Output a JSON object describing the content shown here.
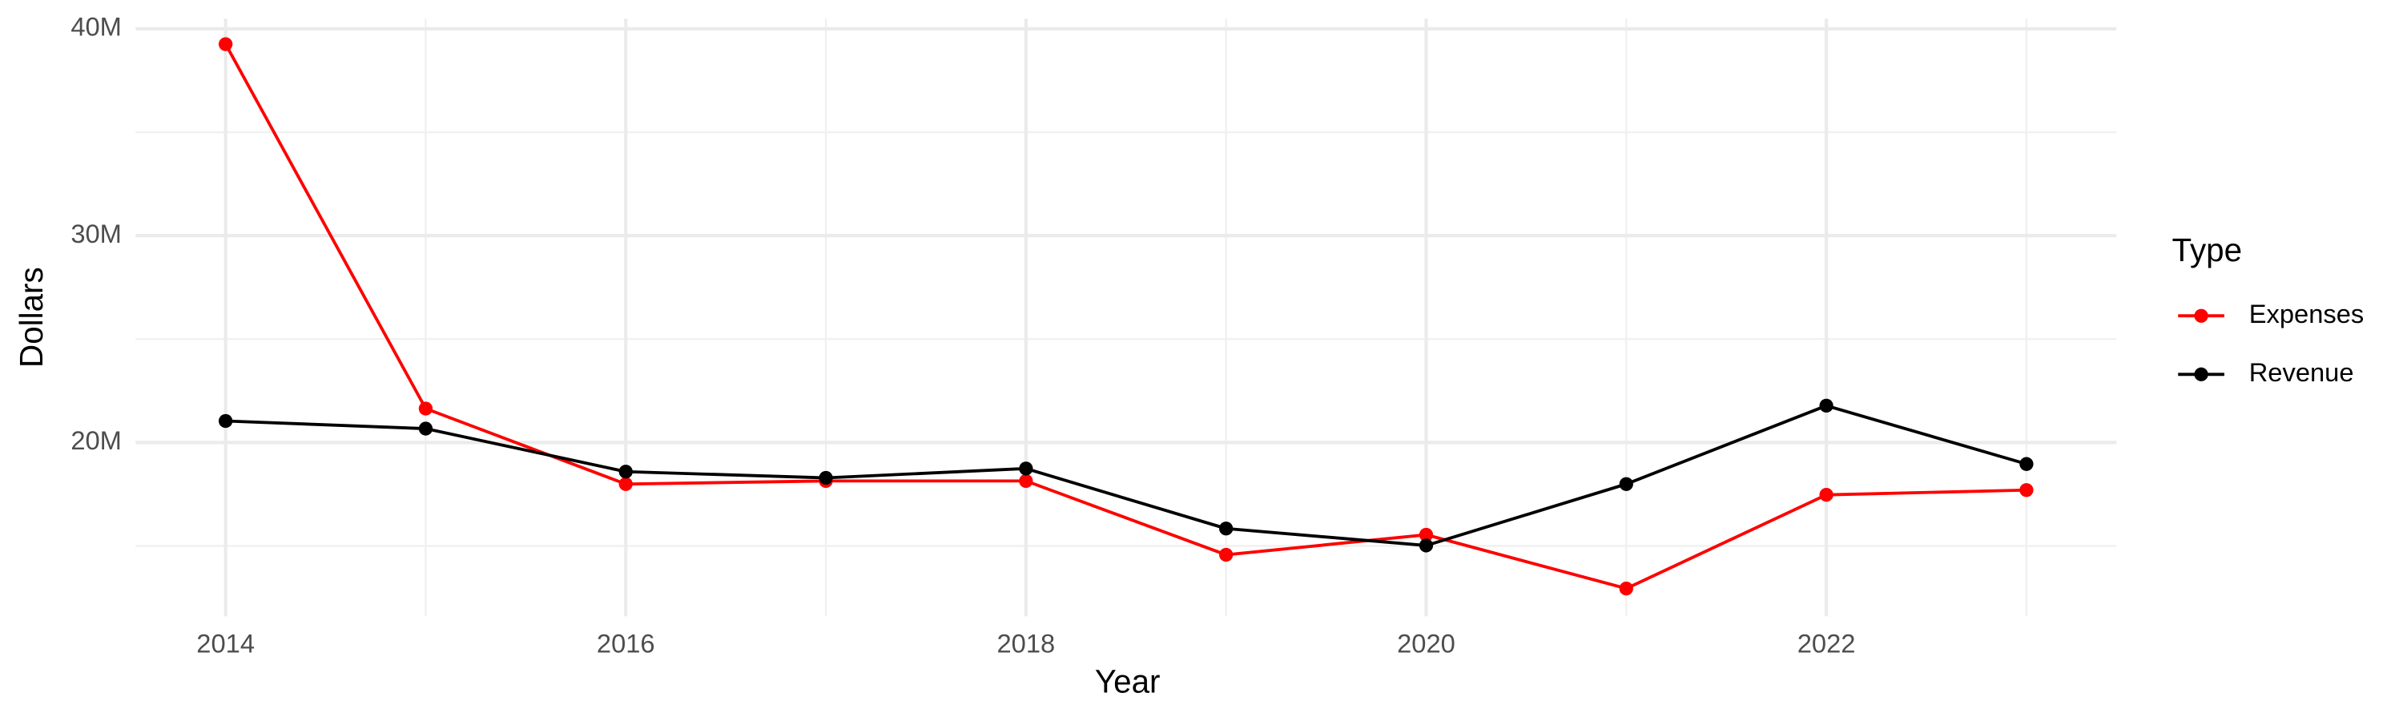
{
  "chart_data": {
    "type": "line",
    "x_label": "Year",
    "y_label": "Dollars",
    "x": [
      2014,
      2015,
      2016,
      2017,
      2018,
      2019,
      2020,
      2021,
      2022,
      2023
    ],
    "series": [
      {
        "name": "Expenses",
        "color": "#ff0000",
        "values": [
          39260000,
          21640000,
          17990000,
          18140000,
          18140000,
          14570000,
          15540000,
          12940000,
          17470000,
          17700000
        ]
      },
      {
        "name": "Revenue",
        "color": "#000000",
        "values": [
          21040000,
          20670000,
          18590000,
          18290000,
          18740000,
          15840000,
          15020000,
          17990000,
          21780000,
          18960000
        ]
      }
    ],
    "xlim": [
      2013.55,
      2023.45
    ],
    "ylim": [
      11600000,
      40500000
    ],
    "xticks": [
      2014,
      2016,
      2018,
      2020,
      2022
    ],
    "yticks": [
      {
        "value": 20000000,
        "label": "20M"
      },
      {
        "value": 30000000,
        "label": "30M"
      },
      {
        "value": 40000000,
        "label": "40M"
      }
    ],
    "xminor": [
      2015,
      2017,
      2019,
      2021,
      2023
    ],
    "yminor": [
      15000000,
      25000000,
      35000000
    ],
    "grid": true,
    "legend_title": "Type",
    "legend_position": "right"
  }
}
